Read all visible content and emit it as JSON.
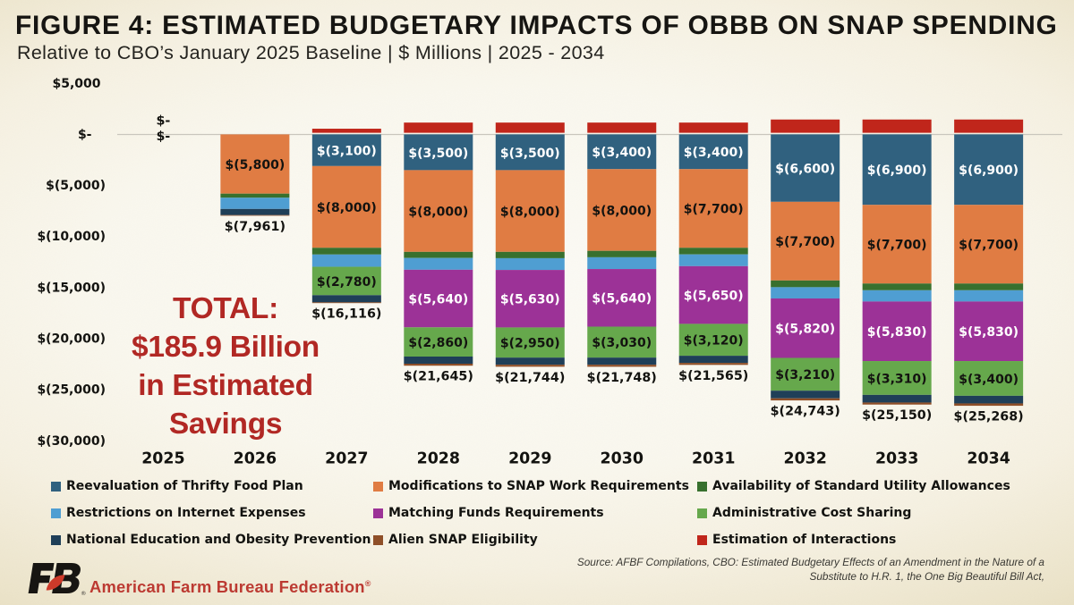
{
  "title": "FIGURE 4: ESTIMATED BUDGETARY IMPACTS OF OBBB ON SNAP SPENDING",
  "subtitle": "Relative to CBO’s January 2025 Baseline | $ Millions | 2025 - 2034",
  "annotation": {
    "lines": [
      "TOTAL:",
      "$185.9 Billion",
      "in Estimated",
      "Savings"
    ],
    "color": "#b12824"
  },
  "chart_data": {
    "type": "bar",
    "stacked": true,
    "title": "Estimated Budgetary Impacts of OBBB on SNAP Spending",
    "xlabel": "",
    "ylabel": "$ Millions",
    "ylim": [
      -30000,
      5000
    ],
    "ytick_interval": 5000,
    "yticks": [
      {
        "value": 5000,
        "label": "$5,000"
      },
      {
        "value": 0,
        "label": "$-"
      },
      {
        "value": -5000,
        "label": "$(5,000)"
      },
      {
        "value": -10000,
        "label": "$(10,000)"
      },
      {
        "value": -15000,
        "label": "$(15,000)"
      },
      {
        "value": -20000,
        "label": "$(20,000)"
      },
      {
        "value": -25000,
        "label": "$(25,000)"
      },
      {
        "value": -30000,
        "label": "$(30,000)"
      }
    ],
    "grid": "zero-line-only",
    "legend_position": "bottom",
    "categories": [
      2025,
      2026,
      2027,
      2028,
      2029,
      2030,
      2031,
      2032,
      2033,
      2034
    ],
    "series": [
      {
        "name": "Reevaluation of Thrifty Food Plan",
        "color": "#30617f",
        "label_color": "#ffffff",
        "values": [
          0,
          0,
          -3100,
          -3500,
          -3500,
          -3400,
          -3400,
          -6600,
          -6900,
          -6900
        ],
        "labels": [
          null,
          null,
          "$(3,100)",
          "$(3,500)",
          "$(3,500)",
          "$(3,400)",
          "$(3,400)",
          "$(6,600)",
          "$(6,900)",
          "$(6,900)"
        ]
      },
      {
        "name": "Modifications to SNAP Work Requirements",
        "color": "#e07c43",
        "label_color": "#131310",
        "values": [
          0,
          -5800,
          -8000,
          -8000,
          -8000,
          -8000,
          -7700,
          -7700,
          -7700,
          -7700
        ],
        "labels": [
          "$-",
          "$(5,800)",
          "$(8,000)",
          "$(8,000)",
          "$(8,000)",
          "$(8,000)",
          "$(7,700)",
          "$(7,700)",
          "$(7,700)",
          "$(7,700)"
        ]
      },
      {
        "name": "Availability of Standard Utility Allowances",
        "color": "#38702e",
        "label_color": "#131310",
        "values": [
          0,
          -400,
          -660,
          -600,
          -620,
          -630,
          -650,
          -660,
          -660,
          -660
        ],
        "labels": [
          null,
          null,
          null,
          null,
          null,
          null,
          null,
          null,
          null,
          null
        ]
      },
      {
        "name": "Restrictions on Internet Expenses",
        "color": "#4f9ed2",
        "label_color": "#131310",
        "values": [
          0,
          -1100,
          -1200,
          -1150,
          -1150,
          -1150,
          -1150,
          -1100,
          -1100,
          -1100
        ],
        "labels": [
          null,
          null,
          null,
          null,
          null,
          null,
          null,
          null,
          null,
          null
        ]
      },
      {
        "name": "Matching Funds Requirements",
        "color": "#9c3297",
        "label_color": "#ffffff",
        "values": [
          0,
          0,
          0,
          -5640,
          -5630,
          -5640,
          -5650,
          -5820,
          -5830,
          -5830
        ],
        "labels": [
          null,
          null,
          null,
          "$(5,640)",
          "$(5,630)",
          "$(5,640)",
          "$(5,650)",
          "$(5,820)",
          "$(5,830)",
          "$(5,830)"
        ]
      },
      {
        "name": "Administrative Cost Sharing",
        "color": "#66a84c",
        "label_color": "#131310",
        "values": [
          0,
          0,
          -2780,
          -2860,
          -2950,
          -3030,
          -3120,
          -3210,
          -3310,
          -3400
        ],
        "labels": [
          null,
          null,
          "$(2,780)",
          "$(2,860)",
          "$(2,950)",
          "$(3,030)",
          "$(3,120)",
          "$(3,210)",
          "$(3,310)",
          "$(3,400)"
        ]
      },
      {
        "name": "National Education and Obesity Prevention",
        "color": "#1f3f58",
        "label_color": "#ffffff",
        "values": [
          0,
          -600,
          -700,
          -700,
          -700,
          -700,
          -700,
          -750,
          -750,
          -750
        ],
        "labels": [
          null,
          null,
          null,
          null,
          null,
          null,
          null,
          null,
          null,
          null
        ]
      },
      {
        "name": "Alien SNAP Eligibility",
        "color": "#8f4f28",
        "label_color": "#ffffff",
        "values": [
          0,
          -61,
          -76,
          -195,
          -194,
          -198,
          -195,
          -203,
          -200,
          -228
        ],
        "labels": [
          null,
          null,
          null,
          null,
          null,
          null,
          null,
          null,
          null,
          null
        ]
      },
      {
        "name": "Estimation of Interactions",
        "color": "#c0261b",
        "label_color": "#ffffff",
        "values": [
          0,
          0,
          400,
          1000,
          1000,
          1000,
          1000,
          1300,
          1300,
          1300
        ],
        "labels": [
          null,
          null,
          null,
          null,
          null,
          null,
          null,
          null,
          null,
          null
        ]
      }
    ],
    "totals": {
      "values": [
        0,
        -7961,
        -16116,
        -21645,
        -21744,
        -21748,
        -21565,
        -24743,
        -25150,
        -25268
      ],
      "labels": [
        "$-",
        "$(7,961)",
        "$(16,116)",
        "$(21,645)",
        "$(21,744)",
        "$(21,748)",
        "$(21,565)",
        "$(24,743)",
        "$(25,150)",
        "$(25,268)"
      ]
    }
  },
  "footer": {
    "brand": "American Farm Bureau Federation",
    "brand_reg": "®",
    "logo": "afbf-fb-monogram",
    "source_lines": [
      "Source: AFBF Compilations, CBO: Estimated Budgetary Effects of an Amendment in the Nature of a",
      "Substitute to H.R. 1, the One Big Beautiful Bill Act,"
    ]
  }
}
